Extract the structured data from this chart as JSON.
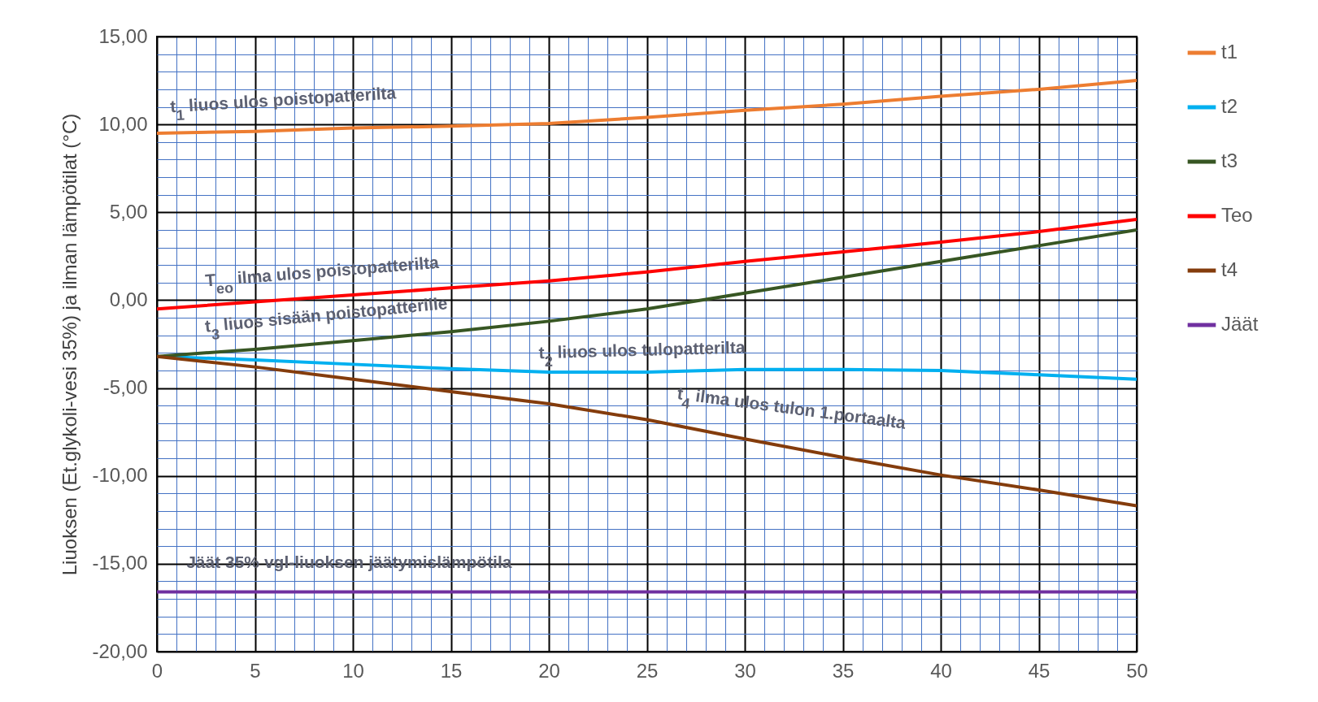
{
  "chart_data": {
    "type": "line",
    "ylabel": "Liuoksen (Et.glykoli-vesi 35%) ja ilman lämpötilat (°C)",
    "x": [
      0,
      5,
      10,
      15,
      20,
      25,
      30,
      35,
      40,
      45,
      50
    ],
    "series": [
      {
        "name": "t1",
        "color": "#ed7d31",
        "values": [
          9.5,
          9.6,
          9.8,
          9.9,
          10.05,
          10.4,
          10.8,
          11.15,
          11.6,
          12.0,
          12.5
        ]
      },
      {
        "name": "t2",
        "color": "#00b0f0",
        "values": [
          -3.2,
          -3.4,
          -3.65,
          -3.9,
          -4.1,
          -4.1,
          -3.95,
          -3.95,
          -4.0,
          -4.25,
          -4.5
        ]
      },
      {
        "name": "t3",
        "color": "#375623",
        "values": [
          -3.2,
          -2.8,
          -2.3,
          -1.8,
          -1.2,
          -0.5,
          0.4,
          1.3,
          2.2,
          3.1,
          4.0
        ]
      },
      {
        "name": "Teo",
        "color": "#ff0000",
        "values": [
          -0.5,
          -0.1,
          0.3,
          0.7,
          1.1,
          1.6,
          2.2,
          2.75,
          3.3,
          3.9,
          4.6
        ]
      },
      {
        "name": "t4",
        "color": "#843c0c",
        "values": [
          -3.2,
          -3.8,
          -4.5,
          -5.2,
          -5.9,
          -6.8,
          -7.9,
          -8.95,
          -9.95,
          -10.8,
          -11.7
        ]
      },
      {
        "name": "Jäät",
        "color": "#7030a0",
        "values": [
          -16.6,
          -16.6,
          -16.6,
          -16.6,
          -16.6,
          -16.6,
          -16.6,
          -16.6,
          -16.6,
          -16.6,
          -16.6
        ]
      }
    ],
    "xlim": [
      0,
      50
    ],
    "xticks": [
      0,
      {
        "value": 1,
        "label": null
      },
      {
        "value": 2,
        "label": null
      },
      {
        "value": 3,
        "label": null
      },
      {
        "value": 4,
        "label": null
      },
      5,
      {
        "value": 6,
        "label": null
      },
      {
        "value": 7,
        "label": null
      },
      {
        "value": 8,
        "label": null
      },
      {
        "value": 9,
        "label": null
      },
      10,
      {
        "value": 11,
        "label": null
      },
      {
        "value": 12,
        "label": null
      },
      {
        "value": 13,
        "label": null
      },
      {
        "value": 14,
        "label": null
      },
      15,
      {
        "value": 16,
        "label": null
      },
      {
        "value": 17,
        "label": null
      },
      {
        "value": 18,
        "label": null
      },
      {
        "value": 19,
        "label": null
      },
      20,
      {
        "value": 21,
        "label": null
      },
      {
        "value": 22,
        "label": null
      },
      {
        "value": 23,
        "label": null
      },
      {
        "value": 24,
        "label": null
      },
      25,
      {
        "value": 26,
        "label": null
      },
      {
        "value": 27,
        "label": null
      },
      {
        "value": 28,
        "label": null
      },
      {
        "value": 29,
        "label": null
      },
      30,
      {
        "value": 31,
        "label": null
      },
      {
        "value": 32,
        "label": null
      },
      {
        "value": 33,
        "label": null
      },
      {
        "value": 34,
        "label": null
      },
      35,
      {
        "value": 36,
        "label": null
      },
      {
        "value": 37,
        "label": null
      },
      {
        "value": 38,
        "label": null
      },
      {
        "value": 39,
        "label": null
      },
      40,
      {
        "value": 41,
        "label": null
      },
      {
        "value": 42,
        "label": null
      },
      {
        "value": 43,
        "label": null
      },
      {
        "value": 44,
        "label": null
      },
      45,
      {
        "value": 46,
        "label": null
      },
      {
        "value": 47,
        "label": null
      },
      {
        "value": 48,
        "label": null
      },
      {
        "value": 49,
        "label": null
      },
      50
    ],
    "ylim": [
      -20,
      15
    ],
    "yticks": [
      {
        "value": -20,
        "label": "-20,00"
      },
      {
        "value": -19,
        "label": null
      },
      {
        "value": -18,
        "label": null
      },
      {
        "value": -17,
        "label": null
      },
      {
        "value": -16,
        "label": null
      },
      {
        "value": -15,
        "label": "-15,00"
      },
      {
        "value": -14,
        "label": null
      },
      {
        "value": -13,
        "label": null
      },
      {
        "value": -12,
        "label": null
      },
      {
        "value": -11,
        "label": null
      },
      {
        "value": -10,
        "label": "-10,00"
      },
      {
        "value": -9,
        "label": null
      },
      {
        "value": -8,
        "label": null
      },
      {
        "value": -7,
        "label": null
      },
      {
        "value": -6,
        "label": null
      },
      {
        "value": -5,
        "label": "-5,00"
      },
      {
        "value": -4,
        "label": null
      },
      {
        "value": -3,
        "label": null
      },
      {
        "value": -2,
        "label": null
      },
      {
        "value": -1,
        "label": null
      },
      {
        "value": 0,
        "label": "0,00"
      },
      {
        "value": 1,
        "label": null
      },
      {
        "value": 2,
        "label": null
      },
      {
        "value": 3,
        "label": null
      },
      {
        "value": 4,
        "label": null
      },
      {
        "value": 5,
        "label": "5,00"
      },
      {
        "value": 6,
        "label": null
      },
      {
        "value": 7,
        "label": null
      },
      {
        "value": 8,
        "label": null
      },
      {
        "value": 9,
        "label": null
      },
      {
        "value": 10,
        "label": "10,00"
      },
      {
        "value": 11,
        "label": null
      },
      {
        "value": 12,
        "label": null
      },
      {
        "value": 13,
        "label": null
      },
      {
        "value": 14,
        "label": null
      },
      {
        "value": 15,
        "label": "15,00"
      }
    ],
    "grid": true,
    "legend": "right",
    "marker": "none",
    "line_style": "solid",
    "annotations": [
      "t$_{1}$ liuos ulos poistopatterilta",
      "T$_{eo}$ ilma ulos poistopatterilta",
      "t$_{3}$ liuos sisään poistopatterille",
      "t$_{2}$ liuos ulos tulopatterilta",
      "t$_{4}$ ilma ulos tulon 1.portaalta",
      "Jäät  35% vgl-liuoksen jäätymislämpötila"
    ]
  }
}
